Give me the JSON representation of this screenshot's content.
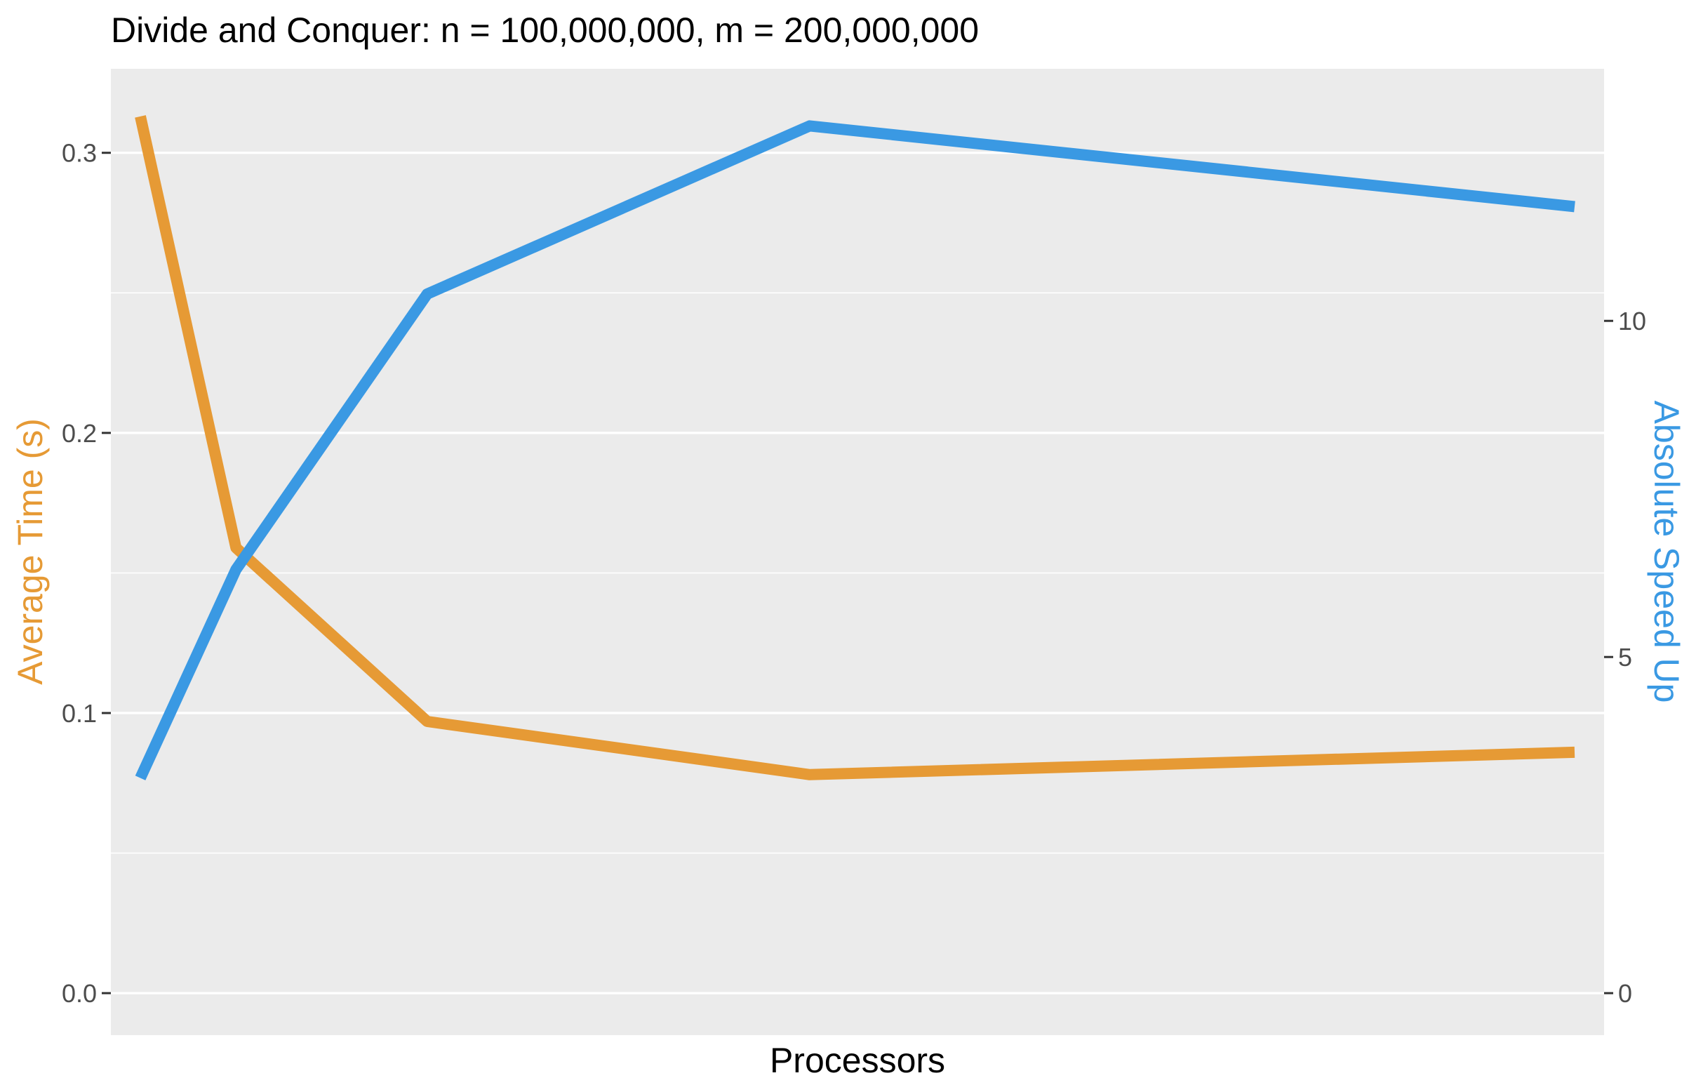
{
  "chart_data": {
    "type": "line",
    "title": "Divide and Conquer: n = 100,000,000, m = 200,000,000",
    "xlabel": "Processors",
    "ylabel_left": "Average Time (s)",
    "ylabel_right": "Absolute Speed Up",
    "x": [
      1,
      2,
      4,
      8,
      16
    ],
    "x_ticks_shown": false,
    "left_axis": {
      "ylim": [
        -0.015,
        0.33
      ],
      "ticks": [
        0.0,
        0.1,
        0.2,
        0.3
      ],
      "tick_labels": [
        "0.0",
        "0.1",
        "0.2",
        "0.3"
      ]
    },
    "right_axis": {
      "ylim": [
        -0.625,
        13.75
      ],
      "ticks": [
        0,
        5,
        10
      ],
      "tick_labels": [
        "0",
        "5",
        "10"
      ]
    },
    "series": [
      {
        "name": "Average Time (s)",
        "axis": "left",
        "color": "#E69A35",
        "values": [
          0.313,
          0.159,
          0.097,
          0.078,
          0.086
        ]
      },
      {
        "name": "Absolute Speed Up",
        "axis": "right",
        "color": "#3A99E3",
        "values": [
          3.2,
          6.3,
          10.4,
          12.9,
          11.7
        ]
      }
    ],
    "grid": true,
    "background": "#EBEBEB",
    "gridline_color": "#FFFFFF"
  }
}
